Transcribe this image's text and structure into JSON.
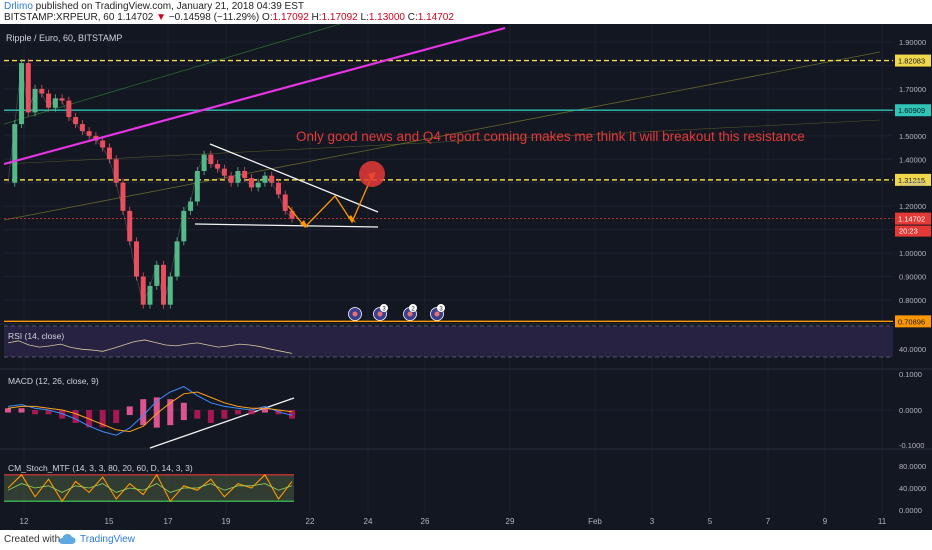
{
  "header": {
    "author": "Drlimo",
    "published": " published on TradingView.com, January 21, 2018 04:39 EST",
    "symbol": "BITSTAMP:XRPEUR, 60",
    "price": "1.14702",
    "change_arrow": "▼",
    "change": "−0.14598 (−11.29%)",
    "o_label": "O:",
    "o_value": "1.17092",
    "h_label": "H:",
    "h_value": "1.17092",
    "l_label": "L:",
    "l_value": "1.13000",
    "c_label": "C:",
    "c_value": "1.14702"
  },
  "footer": {
    "created_with": "Created with",
    "brand": "TradingView"
  },
  "colors": {
    "background": "#131722",
    "magenta": "#e535e5",
    "teal": "#2ec4b6",
    "yellow": "#f0d84a",
    "orange": "#ff9800",
    "red": "#e53935",
    "white": "#f5f5f5",
    "olive": "#7a7a2a",
    "green": "#2e7d32"
  },
  "chart_data": [
    {
      "type": "line",
      "title": "Ripple / Euro, 60, BITSTAMP",
      "ylim": [
        0.64,
        1.98
      ],
      "y_ticks": [
        "1.90000",
        "1.80000",
        "1.70000",
        "1.60000",
        "1.50000",
        "1.40000",
        "1.30000",
        "1.20000",
        "1.1",
        "1.00000",
        "0.90000",
        "0.80000"
      ],
      "x_ticks": [
        "12",
        "15",
        "17",
        "19",
        "22",
        "24",
        "26",
        "29",
        "Feb",
        "3",
        "5",
        "7",
        "9",
        "11"
      ],
      "price_close": [
        1.3,
        1.55,
        1.81,
        1.6,
        1.7,
        1.68,
        1.62,
        1.66,
        1.65,
        1.58,
        1.55,
        1.52,
        1.5,
        1.48,
        1.45,
        1.4,
        1.3,
        1.18,
        1.05,
        0.9,
        0.78,
        0.86,
        0.95,
        0.78,
        0.9,
        1.05,
        1.18,
        1.22,
        1.35,
        1.42,
        1.38,
        1.36,
        1.33,
        1.3,
        1.35,
        1.32,
        1.28,
        1.3,
        1.33,
        1.3,
        1.25,
        1.18,
        1.14702
      ],
      "horizontal_levels": [
        {
          "value": 1.82083,
          "label": "1.82083",
          "style": "dashed"
        },
        {
          "value": 1.60909,
          "label": "1.60909",
          "style": "solid"
        },
        {
          "value": 1.31215,
          "label": "1.31215",
          "style": "dashed"
        },
        {
          "value": 0.70896,
          "label": "0.70896",
          "style": "solid"
        }
      ],
      "last_price_label": "1.14702",
      "countdown": "20:23",
      "annotations": [
        "Only good news and Q4 report coming makes me think it will breakout this resistance"
      ],
      "event_badges": [
        "3",
        "2",
        "3"
      ]
    },
    {
      "type": "line",
      "title": "RSI (14, close)",
      "y_ticks": [
        "40.0000"
      ],
      "bands": [
        70,
        30
      ],
      "values": [
        55,
        60,
        50,
        45,
        48,
        52,
        44,
        40,
        38,
        35,
        42,
        50,
        58,
        62,
        56,
        50,
        48,
        52,
        55,
        50,
        45,
        48,
        52,
        50,
        46,
        40,
        35,
        30
      ]
    },
    {
      "type": "line",
      "title": "MACD (12, 26, close, 9)",
      "y_ticks": [
        "0.1000",
        "0.0000",
        "-0.1000"
      ],
      "macd": [
        0.02,
        0.03,
        0.01,
        0.0,
        -0.02,
        -0.05,
        -0.09,
        -0.12,
        -0.14,
        -0.1,
        -0.03,
        0.05,
        0.1,
        0.13,
        0.08,
        0.04,
        0.02,
        0.01,
        0.0,
        0.02,
        -0.01,
        -0.03
      ],
      "signal": [
        0.01,
        0.02,
        0.02,
        0.01,
        0.0,
        -0.02,
        -0.05,
        -0.08,
        -0.11,
        -0.12,
        -0.09,
        -0.02,
        0.04,
        0.09,
        0.1,
        0.07,
        0.04,
        0.02,
        0.01,
        0.01,
        0.0,
        -0.01
      ]
    },
    {
      "type": "line",
      "title": "CM_Stoch_MTF (14, 3, 3, 80, 20, 60, D, 14, 3, 3)",
      "y_ticks": [
        "80.0000",
        "40.0000",
        "0.0000"
      ],
      "bands": [
        80,
        20
      ],
      "k": [
        50,
        80,
        30,
        70,
        20,
        65,
        40,
        75,
        25,
        60,
        35,
        80,
        20,
        55,
        45,
        70,
        30,
        60,
        50,
        80,
        25,
        65
      ],
      "d": [
        45,
        60,
        50,
        55,
        40,
        55,
        50,
        60,
        40,
        50,
        45,
        60,
        40,
        50,
        50,
        60,
        45,
        55,
        55,
        60,
        45,
        55
      ]
    }
  ]
}
